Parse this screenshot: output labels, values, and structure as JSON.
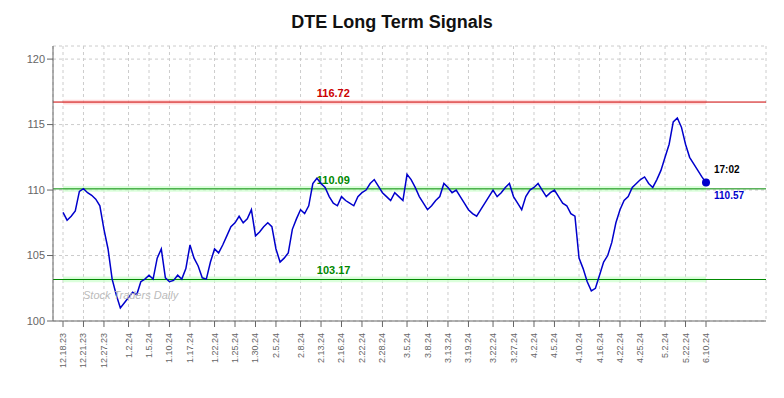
{
  "chart_data": {
    "type": "line",
    "title": "DTE Long Term Signals",
    "watermark": "Stock Traders Daily",
    "categories": [
      "12.18.23",
      null,
      null,
      null,
      null,
      "12.21.23",
      null,
      null,
      null,
      null,
      "12.27.23",
      null,
      null,
      null,
      null,
      null,
      "1.2.24",
      null,
      null,
      null,
      null,
      "1.5.24",
      null,
      null,
      null,
      null,
      "1.10.24",
      null,
      null,
      null,
      null,
      "1.17.24",
      null,
      null,
      null,
      null,
      null,
      "1.22.24",
      null,
      null,
      null,
      null,
      "1.25.24",
      null,
      null,
      null,
      null,
      "1.30.24",
      null,
      null,
      null,
      null,
      "2.5.24",
      null,
      null,
      null,
      null,
      null,
      "2.8.24",
      null,
      null,
      null,
      null,
      "2.13.24",
      null,
      null,
      null,
      null,
      "2.16.24",
      null,
      null,
      null,
      null,
      "2.22.24",
      null,
      null,
      null,
      null,
      "2.28.24",
      null,
      null,
      null,
      null,
      null,
      "3.5.24",
      null,
      null,
      null,
      null,
      "3.8.24",
      null,
      null,
      null,
      null,
      "3.13.24",
      null,
      null,
      null,
      null,
      "3.19.24",
      null,
      null,
      null,
      null,
      null,
      "3.22.24",
      null,
      null,
      null,
      null,
      "3.27.24",
      null,
      null,
      null,
      null,
      "4.2.24",
      null,
      null,
      null,
      null,
      "4.5.24",
      null,
      null,
      null,
      null,
      null,
      "4.10.24",
      null,
      null,
      null,
      null,
      "4.16.24",
      null,
      null,
      null,
      null,
      "4.22.24",
      null,
      null,
      null,
      null,
      "4.25.24",
      null,
      null,
      null,
      null,
      null,
      "5.2.24",
      null,
      null,
      null,
      null,
      "5.22.24",
      null,
      null,
      null,
      null,
      "6.10.24"
    ],
    "values": [
      108.3,
      107.7,
      108.0,
      108.4,
      109.9,
      110.1,
      109.8,
      109.6,
      109.3,
      108.8,
      107.0,
      105.5,
      103.2,
      102.0,
      101.0,
      101.4,
      101.8,
      102.2,
      102.0,
      103.0,
      103.2,
      103.5,
      103.2,
      104.8,
      105.5,
      103.3,
      103.0,
      103.1,
      103.5,
      103.2,
      104.0,
      105.8,
      104.8,
      104.2,
      103.3,
      103.2,
      104.5,
      105.5,
      105.2,
      105.8,
      106.5,
      107.2,
      107.5,
      108.0,
      107.5,
      107.8,
      108.5,
      106.5,
      106.8,
      107.2,
      107.5,
      107.2,
      105.5,
      104.5,
      104.8,
      105.2,
      107.0,
      107.8,
      108.5,
      108.2,
      108.8,
      110.5,
      110.9,
      110.5,
      110.2,
      109.5,
      109.0,
      108.8,
      109.5,
      109.2,
      109.0,
      108.8,
      109.5,
      109.8,
      110.0,
      110.5,
      110.8,
      110.3,
      109.8,
      109.5,
      109.2,
      109.8,
      109.5,
      109.2,
      111.2,
      110.8,
      110.2,
      109.5,
      109.0,
      108.5,
      108.8,
      109.2,
      109.5,
      110.5,
      110.2,
      109.8,
      110.0,
      109.5,
      109.0,
      108.5,
      108.2,
      108.0,
      108.5,
      109.0,
      109.5,
      110.0,
      109.5,
      109.8,
      110.2,
      110.5,
      109.5,
      109.0,
      108.5,
      109.5,
      110.0,
      110.2,
      110.5,
      110.0,
      109.5,
      109.8,
      110.0,
      109.5,
      109.0,
      108.8,
      108.2,
      108.0,
      104.8,
      104.0,
      103.0,
      102.3,
      102.5,
      103.5,
      104.5,
      105.0,
      106.0,
      107.5,
      108.5,
      109.2,
      109.5,
      110.2,
      110.5,
      110.8,
      111.0,
      110.5,
      110.2,
      110.8,
      111.5,
      112.5,
      113.5,
      115.2,
      115.5,
      114.8,
      113.5,
      112.5,
      112.0,
      111.5,
      111.0,
      110.57
    ],
    "color": "#0000cc",
    "ylim": [
      100,
      121
    ],
    "yticks": [
      100,
      105,
      110,
      115,
      120
    ],
    "grid": true,
    "reference_lines": [
      {
        "value": 116.72,
        "label": "116.72",
        "color": "#cc0000",
        "band_half_width": 0.18,
        "band_color": "#ffcccc"
      },
      {
        "value": 110.09,
        "label": "110.09",
        "color": "#008800",
        "band_half_width": 0.22,
        "band_color": "#ccffcc"
      },
      {
        "value": 103.17,
        "label": "103.17",
        "color": "#008800",
        "band_half_width": 0.22,
        "band_color": "#ccffcc"
      }
    ],
    "last_point_annotation": {
      "time": "17:02",
      "price": 110.57
    }
  }
}
